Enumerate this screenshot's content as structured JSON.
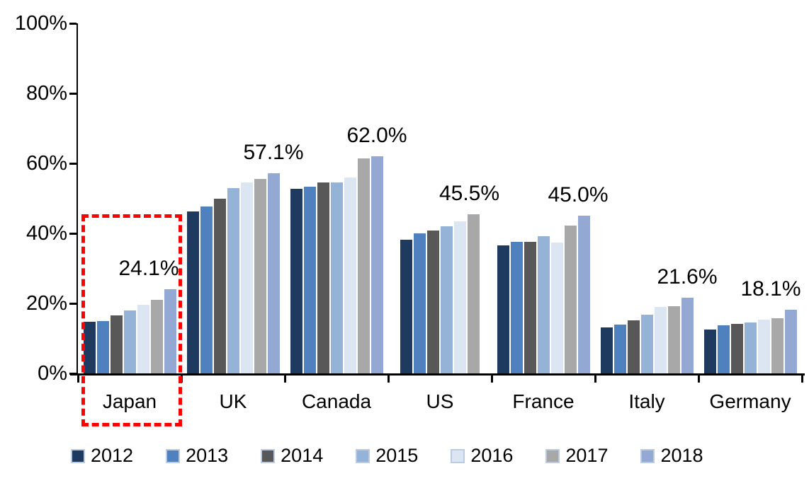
{
  "chart_data": {
    "type": "bar",
    "title": "",
    "xlabel": "",
    "ylabel": "",
    "y_axis": {
      "min": 0,
      "max": 100,
      "tick_labels": [
        "100%",
        "80%",
        "60%",
        "40%",
        "20%",
        "0%"
      ],
      "tick_values": [
        100,
        80,
        60,
        40,
        20,
        0
      ],
      "unit": "%"
    },
    "grid": "off",
    "legend_position": "bottom",
    "categories": [
      "Japan",
      "UK",
      "Canada",
      "US",
      "France",
      "Italy",
      "Germany"
    ],
    "series": [
      {
        "name": "2012",
        "color": "#1F3A5F",
        "values": [
          14.7,
          46.2,
          52.7,
          38.1,
          36.5,
          13.2,
          12.5
        ]
      },
      {
        "name": "2013",
        "color": "#4E81BD",
        "values": [
          15.0,
          47.6,
          53.3,
          40.0,
          37.6,
          14.0,
          13.8
        ]
      },
      {
        "name": "2014",
        "color": "#585858",
        "values": [
          16.5,
          49.9,
          54.6,
          40.9,
          37.6,
          15.1,
          14.2
        ]
      },
      {
        "name": "2015",
        "color": "#95B3D7",
        "values": [
          18.0,
          53.0,
          54.5,
          42.0,
          39.2,
          16.7,
          14.6
        ]
      },
      {
        "name": "2016",
        "color": "#DCE6F2",
        "values": [
          19.7,
          54.6,
          56.0,
          43.5,
          37.3,
          18.9,
          15.3
        ]
      },
      {
        "name": "2017",
        "color": "#A8A8A8",
        "values": [
          21.0,
          55.6,
          61.4,
          45.5,
          42.3,
          19.1,
          15.8
        ]
      },
      {
        "name": "2018",
        "color": "#93A9D4",
        "values": [
          24.1,
          57.1,
          62.0,
          null,
          45.0,
          21.6,
          18.1
        ]
      }
    ],
    "data_labels": [
      "24.1%",
      "57.1%",
      "62.0%",
      "45.5%",
      "45.0%",
      "21.6%",
      "18.1%"
    ],
    "annotation": {
      "type": "dashed-box",
      "target_category": "Japan",
      "color": "#FF0000"
    },
    "legend": [
      "2012",
      "2013",
      "2014",
      "2015",
      "2016",
      "2017",
      "2018"
    ]
  }
}
